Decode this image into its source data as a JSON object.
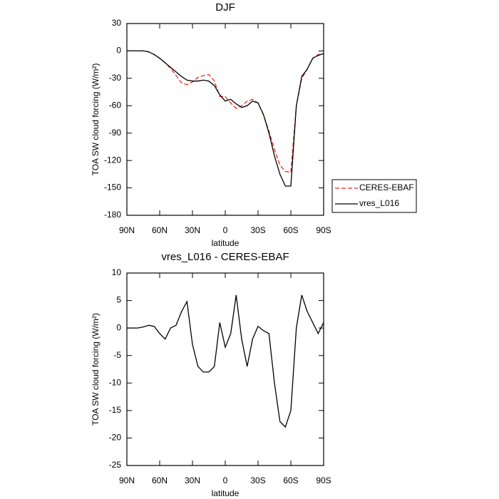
{
  "chart_data": [
    {
      "type": "line",
      "title": "DJF",
      "x_label": "latitude",
      "y_label": "TOA SW cloud forcing (W/m²)",
      "x": [
        90,
        85,
        80,
        75,
        70,
        65,
        60,
        55,
        50,
        45,
        40,
        35,
        30,
        25,
        20,
        15,
        10,
        5,
        0,
        -5,
        -10,
        -15,
        -20,
        -25,
        -30,
        -35,
        -40,
        -45,
        -50,
        -55,
        -60,
        -65,
        -70,
        -75,
        -80,
        -85,
        -90
      ],
      "series": [
        {
          "name": "CERES-EBAF",
          "color": "#e8271f",
          "dash": true,
          "values": [
            0,
            0,
            0,
            0,
            -1,
            -4,
            -8,
            -13,
            -19,
            -27,
            -35,
            -37,
            -34,
            -29,
            -27,
            -26,
            -33,
            -50,
            -50,
            -57,
            -63,
            -60,
            -55,
            -53,
            -57,
            -70,
            -88,
            -108,
            -125,
            -132,
            -133,
            -60,
            -30,
            -20,
            -8,
            -4,
            -3
          ]
        },
        {
          "name": "vres_L016",
          "color": "#000000",
          "dash": false,
          "values": [
            0,
            0,
            0,
            0,
            -1,
            -4,
            -8,
            -13,
            -18,
            -23,
            -28,
            -32,
            -33,
            -33,
            -32,
            -33,
            -38,
            -48,
            -55,
            -53,
            -58,
            -62,
            -60,
            -55,
            -57,
            -70,
            -90,
            -115,
            -135,
            -148,
            -148,
            -60,
            -28,
            -20,
            -8,
            -5,
            -3
          ]
        }
      ],
      "xlim": [
        90,
        -90
      ],
      "xticks": [
        {
          "value": 90,
          "label": "90N"
        },
        {
          "value": 60,
          "label": "60N"
        },
        {
          "value": 30,
          "label": "30N"
        },
        0,
        {
          "value": -30,
          "label": "30S"
        },
        {
          "value": -60,
          "label": "60S"
        },
        {
          "value": -90,
          "label": "90S"
        }
      ],
      "ylim": [
        -180,
        30
      ],
      "yticks": [
        30,
        0,
        -30,
        -60,
        -90,
        -120,
        -150,
        -180
      ],
      "legend": "right"
    },
    {
      "type": "line",
      "title": "vres_L016 - CERES-EBAF",
      "x_label": "latitude",
      "y_label": "TOA SW cloud forcing (W/m²)",
      "x": [
        90,
        85,
        80,
        75,
        70,
        65,
        60,
        55,
        50,
        45,
        40,
        35,
        30,
        25,
        20,
        15,
        10,
        5,
        0,
        -5,
        -10,
        -15,
        -20,
        -25,
        -30,
        -35,
        -40,
        -45,
        -50,
        -55,
        -60,
        -65,
        -70,
        -75,
        -80,
        -85,
        -90
      ],
      "series": [
        {
          "color": "#000000",
          "dash": false,
          "values": [
            0,
            0,
            0,
            0.2,
            0.5,
            0.3,
            -1,
            -2,
            0,
            0.5,
            3,
            4.8,
            -3,
            -7,
            -8,
            -8,
            -7,
            1,
            -3.5,
            -1,
            6,
            -2,
            -7,
            -2,
            0.3,
            -0.5,
            -1,
            -10,
            -17,
            -18,
            -15,
            0,
            6,
            3,
            1,
            -1,
            1
          ]
        }
      ],
      "xlim": [
        90,
        -90
      ],
      "xticks": [
        {
          "value": 90,
          "label": "90N"
        },
        {
          "value": 60,
          "label": "60N"
        },
        {
          "value": 30,
          "label": "30N"
        },
        0,
        {
          "value": -30,
          "label": "30S"
        },
        {
          "value": -60,
          "label": "60S"
        },
        {
          "value": -90,
          "label": "90S"
        }
      ],
      "ylim": [
        -25,
        10
      ],
      "yticks": [
        10,
        5,
        0,
        -5,
        -10,
        -15,
        -20,
        -25
      ]
    }
  ]
}
